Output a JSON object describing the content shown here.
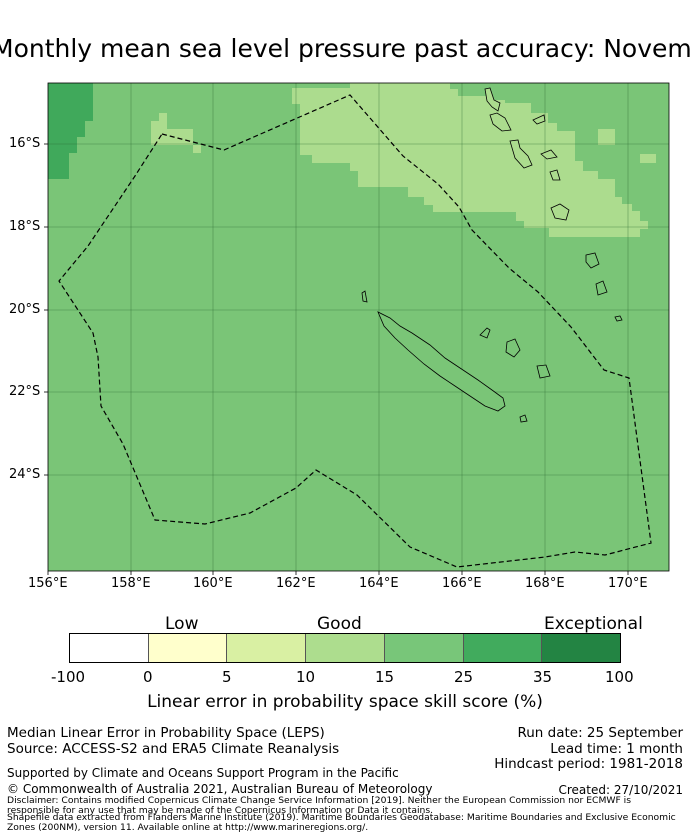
{
  "title": "Monthly mean sea level pressure past accuracy: November",
  "map": {
    "lon_ticks": [
      "156°E",
      "158°E",
      "160°E",
      "162°E",
      "164°E",
      "166°E",
      "168°E",
      "170°E"
    ],
    "lat_ticks": [
      "16°S",
      "18°S",
      "20°S",
      "22°S",
      "24°S"
    ],
    "base_fill": "#7ac577",
    "fill_colors": {
      "good_light": "#acdc8e",
      "darker": "#40a95b",
      "medium": "#7ac577"
    },
    "grid_color": "#2e6b32",
    "border_style": "dashed"
  },
  "legend": {
    "categories": [
      "Low",
      "Good",
      "Exceptional"
    ],
    "bins": [
      {
        "label": "-100",
        "color": "#ffffff"
      },
      {
        "label": "0",
        "color": "#ffffcc"
      },
      {
        "label": "5",
        "color": "#d9f0a3"
      },
      {
        "label": "10",
        "color": "#addd8e"
      },
      {
        "label": "15",
        "color": "#78c679"
      },
      {
        "label": "25",
        "color": "#41ab5d"
      },
      {
        "label": "35",
        "color": "#238443"
      }
    ],
    "last_label": "100",
    "axis_label": "Linear error in probability space skill score (%)"
  },
  "info": {
    "left_1": "Median Linear Error in Probability Space (LEPS)",
    "left_2": "Source: ACCESS-S2 and ERA5 Climate Reanalysis",
    "right_1": "Run date: 25 September",
    "right_2": "Lead time: 1 month",
    "right_3": "Hindcast period: 1981-2018",
    "supported": "Supported by Climate and Oceans Support Program in the Pacific",
    "copyright": "© Commonwealth of Australia 2021, Australian Bureau of Meteorology",
    "created": "Created: 27/10/2021",
    "disclaimer_1": "Disclaimer: Contains modified Copernicus Climate Change Service Information [2019]. Neither the European Commission nor ECMWF is",
    "disclaimer_2": "responsible for any use that may be made of the Copernicus Information or Data it contains.",
    "disclaimer_3": "Shapefile data extracted from Flanders Marine Institute (2019). Maritime Boundaries Geodatabase: Maritime Boundaries and Exclusive Economic",
    "disclaimer_4": "Zones (200NM), version 11. Available online at http://www.marineregions.org/."
  }
}
